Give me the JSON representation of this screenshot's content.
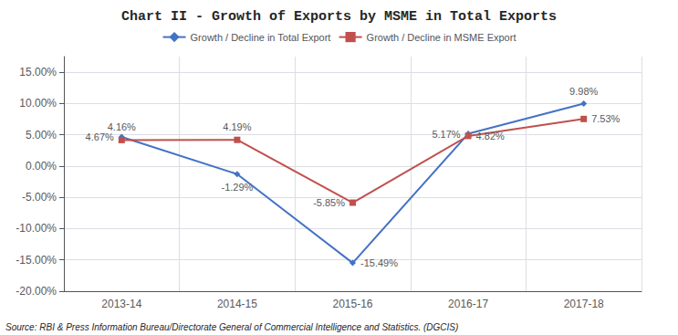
{
  "chart_data": {
    "type": "line",
    "title": "Chart II - Growth of Exports by MSME in Total Exports",
    "categories": [
      "2013-14",
      "2014-15",
      "2015-16",
      "2016-17",
      "2017-18"
    ],
    "series": [
      {
        "name": "Growth / Decline in Total Export",
        "color": "#4472C4",
        "marker": "diamond",
        "values": [
          4.67,
          -1.29,
          -15.49,
          5.17,
          9.98
        ],
        "value_labels": [
          "4.67%",
          "-1.29%",
          "-15.49%",
          "5.17%",
          "9.98%"
        ]
      },
      {
        "name": "Growth / Decline in MSME Export",
        "color": "#C0504D",
        "marker": "square",
        "values": [
          4.16,
          4.19,
          -5.85,
          4.82,
          7.53
        ],
        "value_labels": [
          "4.16%",
          "4.19%",
          "-5.85%",
          "4.82%",
          "7.53%"
        ]
      }
    ],
    "ylim": [
      -20,
      17.5
    ],
    "yticks": [
      {
        "value": -20,
        "label": "-20.00%"
      },
      {
        "value": -15,
        "label": "-15.00%"
      },
      {
        "value": -10,
        "label": "-10.00%"
      },
      {
        "value": -5,
        "label": "-5.00%"
      },
      {
        "value": 0,
        "label": "0.00%"
      },
      {
        "value": 5,
        "label": "5.00%"
      },
      {
        "value": 10,
        "label": "10.00%"
      },
      {
        "value": 15,
        "label": "15.00%"
      }
    ],
    "grid": true,
    "legend": "top",
    "data_labels": true,
    "annotations": [
      "Source: RBI & Press Information Bureau/Directorate General of Commercial Intelligence and Statistics. (DGCIS)"
    ]
  }
}
